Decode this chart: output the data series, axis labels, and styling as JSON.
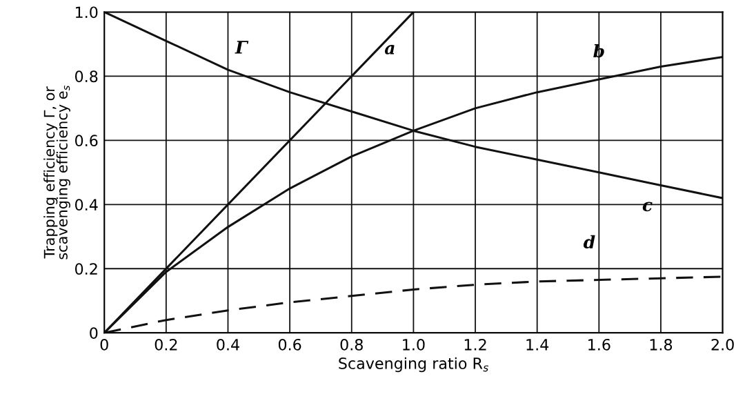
{
  "chart_data": {
    "type": "line",
    "xlabel": "Scavenging ratio R$_{s}$",
    "ylabel": "Trapping efficiency Γ, or\nscavenging efficiency e$_{s}$",
    "x": [
      0,
      0.2,
      0.4,
      0.6,
      0.8,
      1.0,
      1.2,
      1.4,
      1.6,
      1.8,
      2.0
    ],
    "series": [
      {
        "color": "#111111",
        "line_style": "solid",
        "x": [
          0,
          1.0
        ],
        "values": [
          0,
          1.0
        ]
      },
      {
        "color": "#111111",
        "line_style": "solid",
        "values": [
          0,
          0.19,
          0.33,
          0.45,
          0.55,
          0.63,
          0.7,
          0.75,
          0.79,
          0.83,
          0.86
        ]
      },
      {
        "color": "#111111",
        "line_style": "solid",
        "values": [
          1.0,
          0.91,
          0.82,
          0.75,
          0.69,
          0.63,
          0.58,
          0.54,
          0.5,
          0.46,
          0.42
        ]
      },
      {
        "color": "#111111",
        "line_style": "dashed",
        "values": [
          0,
          0.04,
          0.07,
          0.095,
          0.115,
          0.135,
          0.15,
          0.16,
          0.165,
          0.17,
          0.175
        ]
      }
    ],
    "annotations": [
      {
        "text": "Γ",
        "x": 0.4,
        "y": 0.82
      },
      {
        "text": "a",
        "x": 0.8,
        "y": 0.8
      },
      {
        "text": "b",
        "x": 1.6,
        "y": 0.79
      },
      {
        "text": "c",
        "x": 1.8,
        "y": 0.46
      },
      {
        "text": "d",
        "x": 1.6,
        "y": 0.165
      }
    ],
    "xlim": [
      0,
      2.0
    ],
    "ylim": [
      0,
      1.0
    ],
    "xticks": [
      0,
      0.2,
      0.4,
      0.6,
      0.8,
      {
        "value": 1,
        "label": "1.0"
      },
      1.2,
      1.4,
      1.6,
      1.8,
      {
        "value": 2,
        "label": "2.0"
      }
    ],
    "yticks": [
      0,
      0.2,
      0.4,
      0.6,
      0.8,
      {
        "value": 1,
        "label": "1.0"
      }
    ],
    "grid": true,
    "marker": "none"
  }
}
